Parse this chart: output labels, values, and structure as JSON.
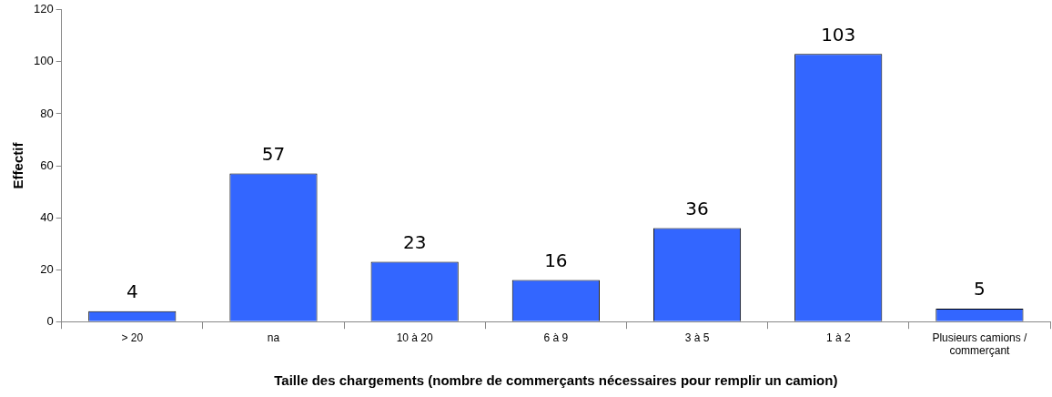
{
  "chart_data": {
    "type": "bar",
    "xlabel": "Taille des chargements (nombre de commerçants nécessaires pour remplir un camion)",
    "ylabel": "Effectif",
    "categories": [
      "> 20",
      "na",
      "10 à 20",
      "6 à 9",
      "3 à 5",
      "1 à 2",
      "Plusieurs camions / commerçant"
    ],
    "values": [
      4,
      57,
      23,
      16,
      36,
      103,
      5
    ],
    "color": "#3366ff",
    "ylim": [
      0,
      120
    ],
    "yticks": [
      0,
      20,
      40,
      60,
      80,
      100,
      120
    ],
    "grid": false,
    "legend": false,
    "data_labels": true
  }
}
